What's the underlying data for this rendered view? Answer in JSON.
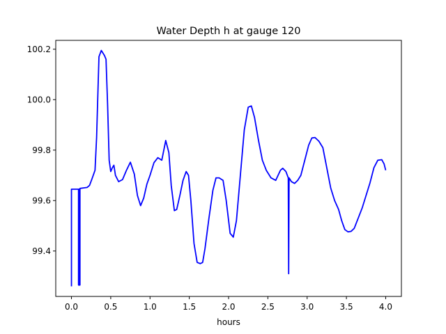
{
  "chart_data": {
    "type": "line",
    "title": "Water Depth h at gauge 120",
    "xlabel": "hours",
    "ylabel": "",
    "xlim": [
      -0.2,
      4.2
    ],
    "ylim": [
      99.22,
      100.235
    ],
    "xticks": [
      0.0,
      0.5,
      1.0,
      1.5,
      2.0,
      2.5,
      3.0,
      3.5,
      4.0
    ],
    "xtick_labels": [
      "0.0",
      "0.5",
      "1.0",
      "1.5",
      "2.0",
      "2.5",
      "3.0",
      "3.5",
      "4.0"
    ],
    "yticks": [
      99.4,
      99.6,
      99.8,
      100.0,
      100.2
    ],
    "ytick_labels": [
      "99.4",
      "99.6",
      "99.8",
      "100.0",
      "100.2"
    ],
    "grid": false,
    "series": [
      {
        "color": "#0000ff",
        "points": [
          [
            0.0,
            99.26
          ],
          [
            0.0,
            99.645
          ],
          [
            0.09,
            99.645
          ],
          [
            0.09,
            99.265
          ],
          [
            0.095,
            99.265
          ],
          [
            0.1,
            99.645
          ],
          [
            0.1,
            99.265
          ],
          [
            0.108,
            99.265
          ],
          [
            0.108,
            99.648
          ],
          [
            0.15,
            99.65
          ],
          [
            0.2,
            99.652
          ],
          [
            0.23,
            99.66
          ],
          [
            0.26,
            99.685
          ],
          [
            0.3,
            99.72
          ],
          [
            0.32,
            99.85
          ],
          [
            0.35,
            100.17
          ],
          [
            0.38,
            100.195
          ],
          [
            0.42,
            100.175
          ],
          [
            0.44,
            100.16
          ],
          [
            0.46,
            99.98
          ],
          [
            0.48,
            99.76
          ],
          [
            0.5,
            99.715
          ],
          [
            0.52,
            99.73
          ],
          [
            0.54,
            99.74
          ],
          [
            0.56,
            99.7
          ],
          [
            0.6,
            99.675
          ],
          [
            0.65,
            99.683
          ],
          [
            0.7,
            99.72
          ],
          [
            0.75,
            99.752
          ],
          [
            0.8,
            99.705
          ],
          [
            0.84,
            99.62
          ],
          [
            0.88,
            99.58
          ],
          [
            0.92,
            99.61
          ],
          [
            0.96,
            99.665
          ],
          [
            1.0,
            99.7
          ],
          [
            1.05,
            99.75
          ],
          [
            1.1,
            99.77
          ],
          [
            1.15,
            99.76
          ],
          [
            1.2,
            99.838
          ],
          [
            1.24,
            99.79
          ],
          [
            1.27,
            99.66
          ],
          [
            1.31,
            99.56
          ],
          [
            1.34,
            99.565
          ],
          [
            1.38,
            99.62
          ],
          [
            1.42,
            99.68
          ],
          [
            1.46,
            99.715
          ],
          [
            1.49,
            99.7
          ],
          [
            1.52,
            99.6
          ],
          [
            1.56,
            99.43
          ],
          [
            1.6,
            99.355
          ],
          [
            1.64,
            99.35
          ],
          [
            1.67,
            99.355
          ],
          [
            1.7,
            99.41
          ],
          [
            1.75,
            99.53
          ],
          [
            1.8,
            99.64
          ],
          [
            1.84,
            99.69
          ],
          [
            1.88,
            99.69
          ],
          [
            1.93,
            99.68
          ],
          [
            1.97,
            99.6
          ],
          [
            2.02,
            99.47
          ],
          [
            2.06,
            99.455
          ],
          [
            2.1,
            99.52
          ],
          [
            2.15,
            99.7
          ],
          [
            2.2,
            99.88
          ],
          [
            2.25,
            99.97
          ],
          [
            2.29,
            99.975
          ],
          [
            2.33,
            99.93
          ],
          [
            2.38,
            99.84
          ],
          [
            2.43,
            99.76
          ],
          [
            2.48,
            99.72
          ],
          [
            2.54,
            99.69
          ],
          [
            2.6,
            99.68
          ],
          [
            2.66,
            99.72
          ],
          [
            2.69,
            99.728
          ],
          [
            2.73,
            99.715
          ],
          [
            2.76,
            99.69
          ],
          [
            2.765,
            99.31
          ],
          [
            2.77,
            99.69
          ],
          [
            2.8,
            99.675
          ],
          [
            2.84,
            99.668
          ],
          [
            2.88,
            99.68
          ],
          [
            2.92,
            99.7
          ],
          [
            2.97,
            99.76
          ],
          [
            3.02,
            99.82
          ],
          [
            3.06,
            99.848
          ],
          [
            3.1,
            99.85
          ],
          [
            3.15,
            99.835
          ],
          [
            3.2,
            99.81
          ],
          [
            3.25,
            99.73
          ],
          [
            3.3,
            99.65
          ],
          [
            3.35,
            99.6
          ],
          [
            3.4,
            99.565
          ],
          [
            3.44,
            99.52
          ],
          [
            3.48,
            99.485
          ],
          [
            3.52,
            99.476
          ],
          [
            3.56,
            99.478
          ],
          [
            3.6,
            99.49
          ],
          [
            3.65,
            99.53
          ],
          [
            3.7,
            99.57
          ],
          [
            3.75,
            99.62
          ],
          [
            3.8,
            99.67
          ],
          [
            3.85,
            99.73
          ],
          [
            3.9,
            99.76
          ],
          [
            3.95,
            99.762
          ],
          [
            3.98,
            99.745
          ],
          [
            4.0,
            99.72
          ]
        ]
      }
    ]
  }
}
